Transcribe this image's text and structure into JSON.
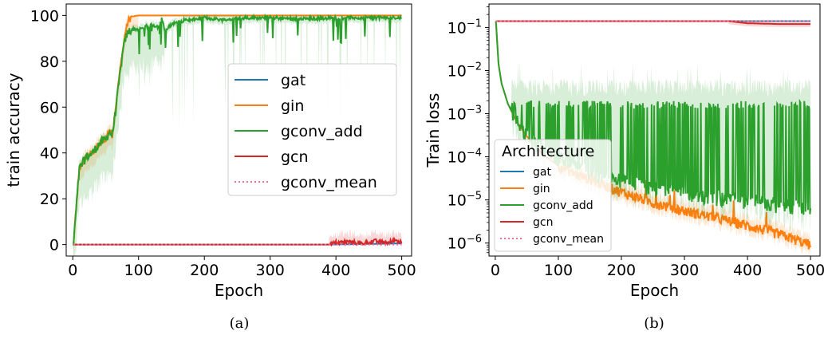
{
  "chart_data": [
    {
      "type": "line",
      "caption": "(a)",
      "xlabel": "Epoch",
      "ylabel": "train accuracy",
      "xlim": [
        -10,
        515
      ],
      "ylim": [
        -5,
        105
      ],
      "xticks": [
        0,
        100,
        200,
        300,
        400,
        500
      ],
      "yticks": [
        0,
        20,
        40,
        60,
        80,
        100
      ],
      "yscale": "linear",
      "grid": false,
      "legend": "center-right",
      "series": [
        {
          "name": "gat",
          "color": "#1f77b4",
          "style": "solid",
          "x": [
            1,
            100,
            200,
            300,
            390,
            450,
            500
          ],
          "y": [
            0,
            0,
            0,
            0,
            0,
            0.3,
            0.5
          ]
        },
        {
          "name": "gin",
          "color": "#ff7f0e",
          "style": "solid",
          "x": [
            1,
            5,
            10,
            20,
            30,
            40,
            50,
            55,
            60,
            65,
            70,
            75,
            80,
            85,
            90,
            95,
            100,
            110,
            150,
            200,
            300,
            400,
            500
          ],
          "y": [
            0,
            15,
            33,
            38,
            40,
            44,
            46,
            50,
            48,
            60,
            72,
            83,
            93,
            98,
            99.5,
            99.8,
            100,
            100,
            100,
            100,
            100,
            100,
            100
          ]
        },
        {
          "name": "gconv_add",
          "color": "#2ca02c",
          "style": "solid",
          "x": [
            1,
            5,
            10,
            20,
            30,
            40,
            50,
            55,
            60,
            65,
            70,
            75,
            80,
            85,
            90,
            95,
            100,
            110,
            120,
            130,
            135,
            140,
            150,
            160,
            170,
            180,
            200,
            230,
            260,
            300,
            350,
            400,
            450,
            500
          ],
          "y": [
            0,
            15,
            33,
            38,
            40,
            44,
            46,
            49,
            48,
            58,
            70,
            82,
            90,
            93,
            94,
            94,
            94,
            95,
            96,
            95,
            99,
            93,
            96,
            97,
            98,
            98,
            99,
            98,
            99,
            99,
            98.5,
            99,
            99,
            99
          ]
        },
        {
          "name": "gcn",
          "color": "#d62728",
          "style": "solid",
          "x": [
            1,
            100,
            200,
            300,
            390,
            400,
            420,
            440,
            460,
            480,
            490,
            500
          ],
          "y": [
            0,
            0,
            0,
            0,
            0,
            0.8,
            1.2,
            0.5,
            1.5,
            0.8,
            2,
            1
          ]
        },
        {
          "name": "gconv_mean",
          "color": "#f0708f",
          "style": "dotted",
          "x": [
            1,
            100,
            200,
            300,
            400,
            500
          ],
          "y": [
            0,
            0,
            0,
            0,
            0,
            0
          ]
        }
      ]
    },
    {
      "type": "line",
      "caption": "(b)",
      "xlabel": "Epoch",
      "ylabel": "Train loss",
      "xlim": [
        -10,
        515
      ],
      "ylim": [
        5e-07,
        0.35
      ],
      "xticks": [
        0,
        100,
        200,
        300,
        400,
        500
      ],
      "yticks": [
        1e-06,
        1e-05,
        0.0001,
        0.001,
        0.01,
        0.1
      ],
      "ytick_base": "10",
      "ytick_exponents": [
        "−6",
        "−5",
        "−4",
        "−3",
        "−2",
        "−1"
      ],
      "yscale": "log",
      "grid": false,
      "legend": "lower-left",
      "legend_title": "Architecture",
      "series": [
        {
          "name": "gat",
          "color": "#1f77b4",
          "style": "solid",
          "x": [
            1,
            100,
            200,
            300,
            400,
            500
          ],
          "y": [
            0.14,
            0.14,
            0.14,
            0.14,
            0.14,
            0.14
          ]
        },
        {
          "name": "gin",
          "color": "#ff7f0e",
          "style": "solid",
          "x": [
            1,
            5,
            10,
            20,
            30,
            40,
            50,
            60,
            80,
            100,
            130,
            160,
            200,
            250,
            300,
            350,
            400,
            450,
            500
          ],
          "y": [
            0.14,
            0.015,
            0.005,
            0.0017,
            0.00085,
            0.00048,
            0.0003,
            0.0002,
            0.0001,
            6.2e-05,
            3.8e-05,
            2.6e-05,
            1.5e-05,
            8.5e-06,
            5.5e-06,
            3.8e-06,
            2.5e-06,
            1.6e-06,
            9e-07
          ]
        },
        {
          "name": "gconv_add",
          "color": "#2ca02c",
          "style": "solid",
          "x": [
            1,
            5,
            10,
            20,
            30,
            40,
            50,
            60,
            80,
            100,
            130,
            160,
            200,
            250,
            300,
            350,
            400,
            450,
            500
          ],
          "y": [
            0.14,
            0.015,
            0.005,
            0.0017,
            0.00085,
            0.0005,
            0.00035,
            0.00025,
            0.00015,
            0.0001,
            6e-05,
            4e-05,
            3e-05,
            2e-05,
            1.5e-05,
            1.2e-05,
            1e-05,
            8e-06,
            7e-06
          ]
        },
        {
          "name": "gcn",
          "color": "#d62728",
          "style": "solid",
          "x": [
            1,
            100,
            200,
            300,
            370,
            400,
            450,
            500
          ],
          "y": [
            0.14,
            0.14,
            0.14,
            0.14,
            0.14,
            0.125,
            0.12,
            0.12
          ]
        },
        {
          "name": "gconv_mean",
          "color": "#f0708f",
          "style": "dotted",
          "x": [
            1,
            100,
            200,
            300,
            400,
            500
          ],
          "y": [
            0.14,
            0.14,
            0.14,
            0.14,
            0.14,
            0.14
          ]
        }
      ]
    }
  ]
}
